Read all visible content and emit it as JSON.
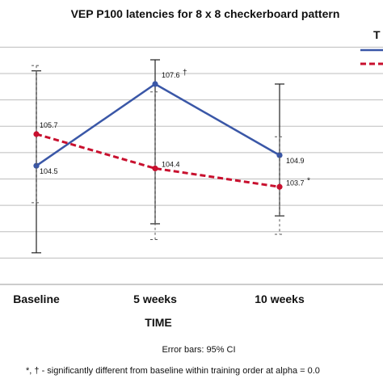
{
  "chart_data": {
    "type": "line",
    "title": "VEP P100 latencies for 8 x 8 checkerboard pattern",
    "xlabel": "TIME",
    "ylabel": "",
    "categories": [
      "Baseline",
      "5 weeks",
      "10 weeks"
    ],
    "ylim": [
      100.0,
      109.5
    ],
    "grid": true,
    "legend_title_fragment": "T",
    "series": [
      {
        "color": "#3a57a7",
        "dash": "solid",
        "values": [
          104.5,
          107.6,
          104.9
        ],
        "labels": [
          "104.5",
          "107.6",
          "104.9"
        ],
        "marks": [
          "",
          "†",
          ""
        ],
        "ci_low": [
          101.2,
          102.3,
          102.6
        ],
        "ci_high": [
          108.1,
          110.5,
          107.6
        ]
      },
      {
        "color": "#c8102e",
        "dash": "dashed",
        "values": [
          105.7,
          104.4,
          103.7
        ],
        "labels": [
          "105.7",
          "104.4",
          "103.7"
        ],
        "marks": [
          "",
          "",
          "*"
        ],
        "ci_low": [
          103.1,
          101.7,
          101.9
        ],
        "ci_high": [
          108.3,
          107.3,
          105.6
        ]
      }
    ],
    "footnotes": [
      "Error bars: 95% CI",
      "*, † - significantly different from baseline within training order at alpha = 0.0"
    ]
  }
}
